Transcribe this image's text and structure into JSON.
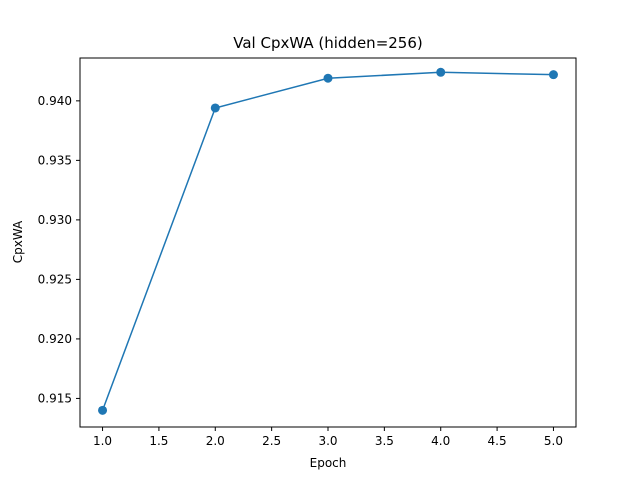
{
  "chart_data": {
    "type": "line",
    "title": "Val CpxWA (hidden=256)",
    "xlabel": "Epoch",
    "ylabel": "CpxWA",
    "x": [
      1.0,
      2.0,
      3.0,
      4.0,
      5.0
    ],
    "series": [
      {
        "values": [
          0.914,
          0.9394,
          0.9419,
          0.9424,
          0.9422
        ]
      }
    ],
    "xticks": [
      "1.0",
      "1.5",
      "2.0",
      "2.5",
      "3.0",
      "3.5",
      "4.0",
      "4.5",
      "5.0"
    ],
    "yticks": [
      "0.915",
      "0.920",
      "0.925",
      "0.930",
      "0.935",
      "0.940"
    ],
    "xlim": [
      0.8,
      5.2
    ],
    "ylim": [
      0.9126,
      0.9436
    ],
    "grid": false,
    "colors": {
      "line": "#1f77b4",
      "axes": "#000000"
    },
    "marker": "circle"
  }
}
